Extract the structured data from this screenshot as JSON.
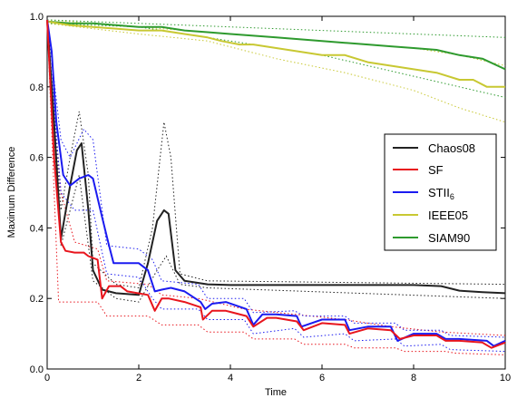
{
  "chart_data": {
    "type": "line",
    "title": "",
    "xlabel": "Time",
    "ylabel": "Maximum Difference",
    "xlim": [
      0,
      10
    ],
    "ylim": [
      0,
      1.0
    ],
    "xticks": [
      "0",
      "2",
      "4",
      "6",
      "8",
      "10"
    ],
    "yticks": [
      "0.0",
      "0.2",
      "0.4",
      "0.6",
      "0.8",
      "1.0"
    ],
    "grid": false,
    "legend_position": "right",
    "series": [
      {
        "name": "Chaos08",
        "color": "#222222",
        "x": [
          0,
          0.15,
          0.3,
          0.5,
          0.65,
          0.75,
          0.9,
          1.0,
          1.2,
          1.5,
          2.0,
          2.2,
          2.4,
          2.55,
          2.65,
          2.8,
          3.0,
          3.5,
          4.0,
          5.0,
          6.0,
          7.0,
          8.0,
          8.6,
          9.0,
          9.5,
          10.0
        ],
        "y": [
          0.99,
          0.7,
          0.37,
          0.52,
          0.62,
          0.64,
          0.45,
          0.28,
          0.225,
          0.215,
          0.21,
          0.3,
          0.42,
          0.45,
          0.44,
          0.28,
          0.25,
          0.24,
          0.238,
          0.238,
          0.238,
          0.238,
          0.238,
          0.235,
          0.222,
          0.218,
          0.215
        ]
      },
      {
        "name": "SF",
        "color": "#e8151d",
        "x": [
          0,
          0.15,
          0.3,
          0.4,
          0.6,
          0.8,
          0.9,
          1.1,
          1.2,
          1.35,
          1.6,
          1.75,
          2.2,
          2.35,
          2.5,
          2.65,
          3.0,
          3.35,
          3.4,
          3.6,
          3.9,
          4.35,
          4.5,
          4.8,
          5.0,
          5.45,
          5.6,
          6.0,
          6.5,
          6.6,
          7.0,
          7.5,
          7.7,
          8.0,
          8.5,
          8.7,
          9.0,
          9.5,
          9.7,
          10.0
        ],
        "y": [
          0.99,
          0.6,
          0.36,
          0.335,
          0.33,
          0.33,
          0.32,
          0.31,
          0.2,
          0.235,
          0.235,
          0.22,
          0.21,
          0.165,
          0.2,
          0.2,
          0.19,
          0.175,
          0.14,
          0.165,
          0.165,
          0.15,
          0.12,
          0.145,
          0.145,
          0.135,
          0.11,
          0.13,
          0.125,
          0.1,
          0.115,
          0.11,
          0.085,
          0.095,
          0.095,
          0.08,
          0.08,
          0.075,
          0.06,
          0.075
        ]
      },
      {
        "name": "STII6",
        "color": "#1b1bf0",
        "x": [
          0,
          0.1,
          0.2,
          0.35,
          0.5,
          0.7,
          0.9,
          1.0,
          1.2,
          1.35,
          1.45,
          2.0,
          2.2,
          2.35,
          2.5,
          2.7,
          3.0,
          3.35,
          3.45,
          3.6,
          3.9,
          4.35,
          4.5,
          4.7,
          5.0,
          5.45,
          5.55,
          6.0,
          6.5,
          6.6,
          7.0,
          7.5,
          7.65,
          8.0,
          8.5,
          8.7,
          9.0,
          9.6,
          9.75,
          10.0
        ],
        "y": [
          0.99,
          0.9,
          0.7,
          0.55,
          0.52,
          0.54,
          0.55,
          0.54,
          0.43,
          0.35,
          0.3,
          0.3,
          0.28,
          0.22,
          0.225,
          0.23,
          0.22,
          0.19,
          0.17,
          0.185,
          0.19,
          0.17,
          0.125,
          0.155,
          0.155,
          0.15,
          0.12,
          0.14,
          0.14,
          0.11,
          0.12,
          0.12,
          0.08,
          0.1,
          0.1,
          0.085,
          0.085,
          0.08,
          0.065,
          0.08
        ]
      },
      {
        "name": "IEEE05",
        "color": "#c8c832",
        "x": [
          0,
          0.5,
          1.0,
          1.5,
          2.0,
          2.5,
          3.0,
          3.5,
          3.8,
          4.2,
          4.5,
          5.0,
          5.5,
          6.0,
          6.5,
          7.0,
          7.5,
          8.0,
          8.5,
          9.0,
          9.3,
          9.6,
          10.0
        ],
        "y": [
          0.985,
          0.975,
          0.97,
          0.965,
          0.96,
          0.96,
          0.95,
          0.94,
          0.93,
          0.92,
          0.92,
          0.91,
          0.9,
          0.89,
          0.89,
          0.87,
          0.86,
          0.85,
          0.84,
          0.82,
          0.82,
          0.8,
          0.8
        ]
      },
      {
        "name": "SIAM90",
        "color": "#2e9a2e",
        "x": [
          0,
          0.5,
          1.0,
          1.5,
          2.0,
          2.5,
          3.0,
          3.5,
          4.0,
          4.5,
          5.0,
          5.5,
          6.0,
          6.5,
          7.0,
          7.5,
          8.0,
          8.5,
          9.0,
          9.5,
          10.0
        ],
        "y": [
          0.985,
          0.98,
          0.98,
          0.975,
          0.97,
          0.97,
          0.96,
          0.955,
          0.95,
          0.945,
          0.94,
          0.935,
          0.93,
          0.925,
          0.92,
          0.915,
          0.91,
          0.905,
          0.89,
          0.88,
          0.85
        ]
      }
    ],
    "envelopes": [
      {
        "series": "Chaos08",
        "upper": [
          [
            0,
            0.99
          ],
          [
            0.3,
            0.45
          ],
          [
            0.5,
            0.6
          ],
          [
            0.7,
            0.73
          ],
          [
            0.9,
            0.55
          ],
          [
            1.0,
            0.3
          ],
          [
            1.5,
            0.24
          ],
          [
            2.0,
            0.23
          ],
          [
            2.3,
            0.4
          ],
          [
            2.55,
            0.7
          ],
          [
            2.7,
            0.6
          ],
          [
            2.9,
            0.27
          ],
          [
            3.5,
            0.25
          ],
          [
            10.0,
            0.24
          ]
        ],
        "lower": [
          [
            0,
            0.99
          ],
          [
            0.3,
            0.35
          ],
          [
            0.5,
            0.45
          ],
          [
            0.7,
            0.55
          ],
          [
            0.9,
            0.35
          ],
          [
            1.0,
            0.25
          ],
          [
            1.5,
            0.2
          ],
          [
            2.0,
            0.19
          ],
          [
            2.4,
            0.28
          ],
          [
            2.6,
            0.32
          ],
          [
            2.9,
            0.24
          ],
          [
            3.5,
            0.23
          ],
          [
            10.0,
            0.2
          ]
        ]
      },
      {
        "series": "SF",
        "upper": [
          [
            0,
            0.99
          ],
          [
            0.3,
            0.5
          ],
          [
            0.6,
            0.36
          ],
          [
            1.1,
            0.34
          ],
          [
            1.3,
            0.25
          ],
          [
            2.2,
            0.24
          ],
          [
            2.5,
            0.21
          ],
          [
            3.3,
            0.2
          ],
          [
            4.3,
            0.17
          ],
          [
            5.4,
            0.155
          ],
          [
            6.5,
            0.14
          ],
          [
            7.5,
            0.12
          ],
          [
            8.6,
            0.105
          ],
          [
            10.0,
            0.095
          ]
        ],
        "lower": [
          [
            0,
            0.99
          ],
          [
            0.25,
            0.19
          ],
          [
            1.1,
            0.19
          ],
          [
            1.3,
            0.15
          ],
          [
            2.2,
            0.15
          ],
          [
            2.5,
            0.125
          ],
          [
            3.3,
            0.125
          ],
          [
            3.5,
            0.105
          ],
          [
            4.3,
            0.105
          ],
          [
            4.5,
            0.085
          ],
          [
            5.4,
            0.085
          ],
          [
            5.6,
            0.07
          ],
          [
            6.5,
            0.07
          ],
          [
            6.7,
            0.06
          ],
          [
            7.6,
            0.06
          ],
          [
            7.8,
            0.05
          ],
          [
            8.7,
            0.05
          ],
          [
            8.9,
            0.045
          ],
          [
            10.0,
            0.04
          ]
        ]
      },
      {
        "series": "STII6",
        "upper": [
          [
            0,
            0.99
          ],
          [
            0.3,
            0.65
          ],
          [
            0.5,
            0.6
          ],
          [
            0.8,
            0.68
          ],
          [
            1.0,
            0.65
          ],
          [
            1.3,
            0.35
          ],
          [
            2.0,
            0.34
          ],
          [
            2.3,
            0.31
          ],
          [
            2.5,
            0.25
          ],
          [
            3.3,
            0.24
          ],
          [
            3.5,
            0.2
          ],
          [
            4.3,
            0.2
          ],
          [
            4.5,
            0.16
          ],
          [
            5.4,
            0.165
          ],
          [
            5.6,
            0.15
          ],
          [
            6.5,
            0.15
          ],
          [
            6.7,
            0.13
          ],
          [
            7.6,
            0.13
          ],
          [
            7.8,
            0.11
          ],
          [
            8.6,
            0.11
          ],
          [
            8.8,
            0.095
          ],
          [
            10.0,
            0.09
          ]
        ],
        "lower": [
          [
            0,
            0.99
          ],
          [
            0.3,
            0.5
          ],
          [
            0.6,
            0.45
          ],
          [
            1.0,
            0.45
          ],
          [
            1.3,
            0.27
          ],
          [
            2.0,
            0.26
          ],
          [
            2.3,
            0.2
          ],
          [
            2.5,
            0.17
          ],
          [
            3.3,
            0.17
          ],
          [
            3.5,
            0.14
          ],
          [
            4.3,
            0.14
          ],
          [
            4.5,
            0.1
          ],
          [
            5.4,
            0.115
          ],
          [
            5.6,
            0.09
          ],
          [
            6.5,
            0.1
          ],
          [
            6.7,
            0.08
          ],
          [
            7.6,
            0.085
          ],
          [
            7.8,
            0.065
          ],
          [
            8.6,
            0.07
          ],
          [
            8.8,
            0.055
          ],
          [
            10.0,
            0.05
          ]
        ]
      },
      {
        "series": "IEEE05",
        "upper": [
          [
            0,
            0.99
          ],
          [
            2.0,
            0.97
          ],
          [
            4.0,
            0.95
          ],
          [
            6.0,
            0.93
          ],
          [
            8.0,
            0.91
          ],
          [
            9.0,
            0.89
          ],
          [
            10.0,
            0.86
          ]
        ],
        "lower": [
          [
            0,
            0.98
          ],
          [
            2.0,
            0.95
          ],
          [
            3.5,
            0.93
          ],
          [
            5.0,
            0.88
          ],
          [
            6.5,
            0.84
          ],
          [
            8.0,
            0.79
          ],
          [
            9.0,
            0.74
          ],
          [
            10.0,
            0.7
          ]
        ]
      },
      {
        "series": "SIAM90",
        "upper": [
          [
            0,
            0.99
          ],
          [
            2.0,
            0.98
          ],
          [
            4.0,
            0.97
          ],
          [
            6.0,
            0.96
          ],
          [
            8.0,
            0.95
          ],
          [
            10.0,
            0.94
          ]
        ],
        "lower": [
          [
            0,
            0.98
          ],
          [
            2.0,
            0.97
          ],
          [
            4.0,
            0.93
          ],
          [
            6.0,
            0.89
          ],
          [
            8.0,
            0.83
          ],
          [
            9.0,
            0.8
          ],
          [
            10.0,
            0.77
          ]
        ]
      }
    ]
  }
}
